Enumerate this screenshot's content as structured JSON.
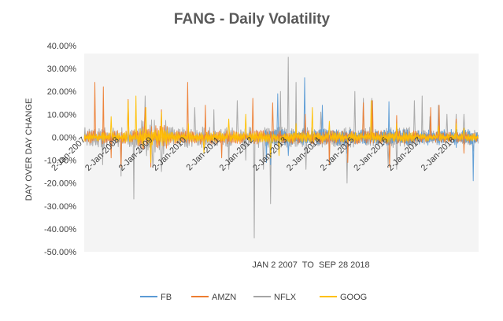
{
  "chart_data": {
    "type": "line",
    "title": "FANG - Daily Volatility",
    "xlabel": "JAN 2 2007  TO  SEP 28 2018",
    "ylabel": "DAY OVER DAY CHANGE",
    "ylim": [
      -0.5,
      0.4
    ],
    "xlim": [
      2007.0,
      2018.74
    ],
    "yticks": [
      0.4,
      0.3,
      0.2,
      0.1,
      0.0,
      -0.1,
      -0.2,
      -0.3,
      -0.4,
      -0.5
    ],
    "ytick_labels": [
      "40.00%",
      "30.00%",
      "20.00%",
      "10.00%",
      "0.00%",
      "-10.00%",
      "-20.00%",
      "-30.00%",
      "-40.00%",
      "-50.00%"
    ],
    "xticks": [
      2007,
      2008,
      2009,
      2010,
      2011,
      2012,
      2013,
      2014,
      2015,
      2016,
      2017,
      2018
    ],
    "xtick_labels": [
      "2-Jan-2007",
      "2-Jan-2008",
      "2-Jan-2009",
      "2-Jan-2010",
      "2-Jan-2011",
      "2-Jan-2012",
      "2-Jan-2013",
      "2-Jan-2014",
      "2-Jan-2015",
      "2-Jan-2016",
      "2-Jan-2017",
      "2-Jan-2018"
    ],
    "grid": false,
    "legend_position": "bottom",
    "series": [
      {
        "name": "FB",
        "color": "#5b9bd5",
        "start": 2012.38,
        "amplitude": 0.035,
        "spikes": [
          [
            2012.42,
            -0.11
          ],
          [
            2012.55,
            -0.12
          ],
          [
            2012.75,
            0.19
          ],
          [
            2013.08,
            -0.08
          ],
          [
            2013.56,
            0.26
          ],
          [
            2014.08,
            0.14
          ],
          [
            2014.83,
            -0.07
          ],
          [
            2016.08,
            0.155
          ],
          [
            2018.07,
            -0.045
          ],
          [
            2018.57,
            -0.19
          ]
        ]
      },
      {
        "name": "AMZN",
        "color": "#ed7d31",
        "start": 2007.0,
        "amplitude": 0.03,
        "spikes": [
          [
            2007.32,
            0.24
          ],
          [
            2007.56,
            0.22
          ],
          [
            2007.8,
            -0.09
          ],
          [
            2008.1,
            -0.13
          ],
          [
            2008.3,
            0.165
          ],
          [
            2008.81,
            0.13
          ],
          [
            2008.98,
            -0.13
          ],
          [
            2009.3,
            0.12
          ],
          [
            2010.07,
            0.24
          ],
          [
            2010.6,
            0.14
          ],
          [
            2011.1,
            -0.09
          ],
          [
            2012.02,
            0.17
          ],
          [
            2012.6,
            0.15
          ],
          [
            2013.58,
            0.1
          ],
          [
            2014.3,
            -0.12
          ],
          [
            2014.84,
            -0.11
          ],
          [
            2015.3,
            0.15
          ],
          [
            2015.58,
            0.16
          ],
          [
            2016.1,
            -0.13
          ],
          [
            2016.3,
            0.095
          ],
          [
            2017.32,
            0.13
          ],
          [
            2017.57,
            0.14
          ],
          [
            2018.07,
            0.08
          ],
          [
            2018.3,
            -0.07
          ]
        ]
      },
      {
        "name": "NFLX",
        "color": "#a5a5a5",
        "start": 2007.0,
        "amplitude": 0.045,
        "spikes": [
          [
            2007.55,
            -0.12
          ],
          [
            2008.1,
            -0.17
          ],
          [
            2008.48,
            -0.27
          ],
          [
            2008.81,
            0.18
          ],
          [
            2009.05,
            -0.13
          ],
          [
            2009.3,
            -0.15
          ],
          [
            2010.3,
            0.13
          ],
          [
            2010.85,
            0.12
          ],
          [
            2011.3,
            -0.14
          ],
          [
            2011.55,
            0.16
          ],
          [
            2011.8,
            -0.1
          ],
          [
            2012.07,
            -0.44
          ],
          [
            2012.33,
            -0.14
          ],
          [
            2012.55,
            -0.29
          ],
          [
            2012.85,
            0.2
          ],
          [
            2013.07,
            0.35
          ],
          [
            2013.3,
            0.24
          ],
          [
            2013.6,
            -0.14
          ],
          [
            2014.05,
            0.11
          ],
          [
            2014.3,
            -0.1
          ],
          [
            2014.83,
            -0.2
          ],
          [
            2015.05,
            0.2
          ],
          [
            2015.3,
            0.17
          ],
          [
            2015.57,
            0.17
          ],
          [
            2016.05,
            -0.12
          ],
          [
            2016.3,
            -0.14
          ],
          [
            2016.83,
            0.16
          ],
          [
            2017.05,
            0.18
          ],
          [
            2017.3,
            0.09
          ],
          [
            2017.55,
            0.14
          ],
          [
            2017.8,
            0.1
          ],
          [
            2018.07,
            0.1
          ],
          [
            2018.3,
            0.1
          ],
          [
            2018.57,
            -0.06
          ]
        ]
      },
      {
        "name": "GOOG",
        "color": "#ffc000",
        "start": 2007.0,
        "amplitude": 0.022,
        "spikes": [
          [
            2007.8,
            0.09
          ],
          [
            2008.3,
            0.16
          ],
          [
            2008.55,
            0.18
          ],
          [
            2008.83,
            0.13
          ],
          [
            2008.98,
            -0.11
          ],
          [
            2009.3,
            0.11
          ],
          [
            2010.1,
            0.06
          ],
          [
            2010.56,
            -0.07
          ],
          [
            2011.3,
            0.08
          ],
          [
            2011.8,
            0.1
          ],
          [
            2012.55,
            -0.09
          ],
          [
            2012.8,
            -0.08
          ],
          [
            2013.3,
            0.06
          ],
          [
            2013.8,
            0.13
          ],
          [
            2014.3,
            0.07
          ],
          [
            2015.55,
            0.16
          ],
          [
            2016.3,
            0.06
          ],
          [
            2017.55,
            0.05
          ],
          [
            2018.07,
            0.06
          ],
          [
            2018.3,
            0.04
          ]
        ]
      }
    ]
  }
}
